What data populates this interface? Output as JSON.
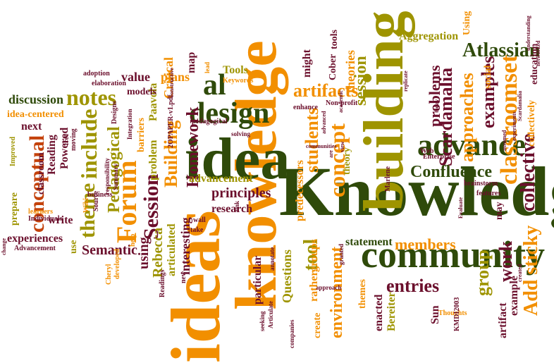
{
  "title": "",
  "words": [
    {
      "text": "Knowledge",
      "color": "green"
    },
    {
      "text": "knowledge",
      "color": "orange"
    },
    {
      "text": "ideas",
      "color": "orange"
    },
    {
      "text": "idea",
      "color": "green"
    },
    {
      "text": "building",
      "color": "olive"
    },
    {
      "text": "community",
      "color": "green"
    },
    {
      "text": "advance",
      "color": "green"
    },
    {
      "text": "design",
      "color": "green"
    },
    {
      "text": "al",
      "color": "green"
    },
    {
      "text": "Forum",
      "color": "orange"
    },
    {
      "text": "concept",
      "color": "orange"
    },
    {
      "text": "classroomset",
      "color": "orange"
    },
    {
      "text": "collective",
      "color": "maroon"
    },
    {
      "text": "Add sticky",
      "color": "orange"
    },
    {
      "text": "notes",
      "color": "olive"
    },
    {
      "text": "include",
      "color": "olive"
    },
    {
      "text": "theme",
      "color": "olive"
    },
    {
      "text": "conceptual",
      "color": "red"
    },
    {
      "text": "students",
      "color": "orange"
    },
    {
      "text": "Confluence",
      "color": "green"
    },
    {
      "text": "Atlassian",
      "color": "green"
    },
    {
      "text": "Scardamalia",
      "color": "maroon"
    },
    {
      "text": "approaches",
      "color": "orange"
    },
    {
      "text": "examples",
      "color": "maroon"
    },
    {
      "text": "Session",
      "color": "maroon"
    },
    {
      "text": "Building",
      "color": "orange"
    },
    {
      "text": "Homework",
      "color": "maroon"
    },
    {
      "text": "artifacts",
      "color": "orange"
    },
    {
      "text": "session",
      "color": "olive"
    },
    {
      "text": "problems",
      "color": "maroon"
    },
    {
      "text": "members",
      "color": "orange"
    },
    {
      "text": "entries",
      "color": "maroon"
    },
    {
      "text": "group",
      "color": "olive"
    },
    {
      "text": "work",
      "color": "maroon"
    },
    {
      "text": "Pedagogical",
      "color": "olive"
    },
    {
      "text": "Semantic",
      "color": "maroon"
    },
    {
      "text": "Questions",
      "color": "olive"
    },
    {
      "text": "particular",
      "color": "maroon"
    },
    {
      "text": "environment",
      "color": "orange"
    },
    {
      "text": "tool",
      "color": "olive"
    },
    {
      "text": "statement",
      "color": "green"
    },
    {
      "text": "principles",
      "color": "maroon"
    },
    {
      "text": "advancement",
      "color": "olive"
    },
    {
      "text": "research",
      "color": "maroon"
    },
    {
      "text": "articulated",
      "color": "olive"
    },
    {
      "text": "interesting",
      "color": "maroon"
    },
    {
      "text": "using",
      "color": "maroon"
    },
    {
      "text": "Rebecca",
      "color": "olive"
    },
    {
      "text": "Paavola",
      "color": "olive"
    },
    {
      "text": "Critical",
      "color": "orange"
    },
    {
      "text": "models",
      "color": "maroon"
    },
    {
      "text": "value",
      "color": "maroon"
    },
    {
      "text": "plans",
      "color": "orange"
    },
    {
      "text": "map",
      "color": "maroon"
    },
    {
      "text": "Tools",
      "color": "olive"
    },
    {
      "text": "theories",
      "color": "orange"
    },
    {
      "text": "might",
      "color": "maroon"
    },
    {
      "text": "Cober",
      "color": "maroon"
    },
    {
      "text": "tools",
      "color": "maroon"
    },
    {
      "text": "Aggregation",
      "color": "olive"
    },
    {
      "text": "Using",
      "color": "orange"
    },
    {
      "text": "social",
      "color": "orange"
    },
    {
      "text": "education",
      "color": "maroon"
    },
    {
      "text": "collectively",
      "color": "orange"
    },
    {
      "text": "discussion",
      "color": "green"
    },
    {
      "text": "idea-centered",
      "color": "orange"
    },
    {
      "text": "next",
      "color": "maroon"
    },
    {
      "text": "Reading",
      "color": "maroon"
    },
    {
      "text": "Powered",
      "color": "maroon"
    },
    {
      "text": "experiences",
      "color": "maroon"
    },
    {
      "text": "prepare",
      "color": "olive"
    },
    {
      "text": "write",
      "color": "maroon"
    },
    {
      "text": "use",
      "color": "olive"
    },
    {
      "text": "classroom",
      "color": "maroon"
    },
    {
      "text": "barriers",
      "color": "orange"
    },
    {
      "text": "problem",
      "color": "olive"
    },
    {
      "text": "predecessors",
      "color": "orange"
    },
    {
      "text": "theory",
      "color": "olive"
    },
    {
      "text": "themes",
      "color": "orange"
    },
    {
      "text": "rather",
      "color": "orange"
    },
    {
      "text": "groups",
      "color": "orange"
    },
    {
      "text": "create",
      "color": "orange"
    },
    {
      "text": "enacted",
      "color": "maroon"
    },
    {
      "text": "Bereiter",
      "color": "olive"
    },
    {
      "text": "Sun",
      "color": "maroon"
    },
    {
      "text": "artifact",
      "color": "maroon"
    },
    {
      "text": "example",
      "color": "maroon"
    },
    {
      "text": "may",
      "color": "maroon"
    },
    {
      "text": "brainstorm",
      "color": "maroon"
    },
    {
      "text": "features",
      "color": "maroon"
    },
    {
      "text": "Thoughts",
      "color": "orange"
    },
    {
      "text": "KMDI2003",
      "color": "maroon"
    },
    {
      "text": "Web",
      "color": "maroon"
    },
    {
      "text": "Enterprise",
      "color": "maroon"
    },
    {
      "text": "Marlene",
      "color": "maroon"
    },
    {
      "text": "Non-profit",
      "color": "maroon"
    },
    {
      "text": "Keywords",
      "color": "orange"
    },
    {
      "text": "2OPAPER-v1.pdf",
      "color": "maroon"
    },
    {
      "text": "Designs",
      "color": "maroon"
    },
    {
      "text": "adoption",
      "color": "maroon"
    },
    {
      "text": "Improved",
      "color": "olive"
    },
    {
      "text": "elaboration",
      "color": "maroon"
    },
    {
      "text": "Advancement",
      "color": "maroon"
    },
    {
      "text": "Individuals",
      "color": "maroon"
    },
    {
      "text": "learners",
      "color": "orange"
    },
    {
      "text": "change",
      "color": "maroon"
    },
    {
      "text": "Cheryl",
      "color": "orange"
    },
    {
      "text": "developed",
      "color": "orange"
    },
    {
      "text": "help",
      "color": "orange"
    },
    {
      "text": "Wiki",
      "color": "orange"
    },
    {
      "text": "Source",
      "color": "maroon"
    },
    {
      "text": "business",
      "color": "maroon"
    },
    {
      "text": "responsibility",
      "color": "maroon"
    },
    {
      "text": "Summary",
      "color": "maroon"
    },
    {
      "text": "free",
      "color": "maroon"
    },
    {
      "text": "moving",
      "color": "maroon"
    },
    {
      "text": "Integration",
      "color": "maroon"
    },
    {
      "text": "constructive",
      "color": "maroon"
    },
    {
      "text": "new",
      "color": "maroon"
    },
    {
      "text": "Readings",
      "color": "maroon"
    },
    {
      "text": "wall",
      "color": "maroon"
    },
    {
      "text": "take",
      "color": "maroon"
    },
    {
      "text": "pedagogical",
      "color": "maroon"
    },
    {
      "text": "solving",
      "color": "maroon"
    },
    {
      "text": "enhance",
      "color": "maroon"
    },
    {
      "text": "lead",
      "color": "orange"
    },
    {
      "text": "link",
      "color": "maroon"
    },
    {
      "text": "granted",
      "color": "maroon"
    },
    {
      "text": "seeking",
      "color": "maroon"
    },
    {
      "text": "Articulate",
      "color": "maroon"
    },
    {
      "text": "companies",
      "color": "maroon"
    },
    {
      "text": "approach",
      "color": "maroon"
    },
    {
      "text": "annotate",
      "color": "maroon"
    },
    {
      "text": "communities",
      "color": "maroon"
    },
    {
      "text": "advanced",
      "color": "maroon"
    },
    {
      "text": "are",
      "color": "maroon"
    },
    {
      "text": "academic",
      "color": "maroon"
    },
    {
      "text": "replicate",
      "color": "maroon"
    },
    {
      "text": "assumed",
      "color": "maroon"
    },
    {
      "text": "understanding",
      "color": "maroon"
    },
    {
      "text": "experiments",
      "color": "maroon"
    },
    {
      "text": "networked",
      "color": "maroon"
    },
    {
      "text": "Scardamalia",
      "color": "maroon"
    },
    {
      "text": "Evaluate",
      "color": "maroon"
    },
    {
      "text": "created",
      "color": "maroon"
    },
    {
      "text": "today",
      "color": "maroon"
    },
    {
      "text": "view",
      "color": "maroon"
    }
  ]
}
